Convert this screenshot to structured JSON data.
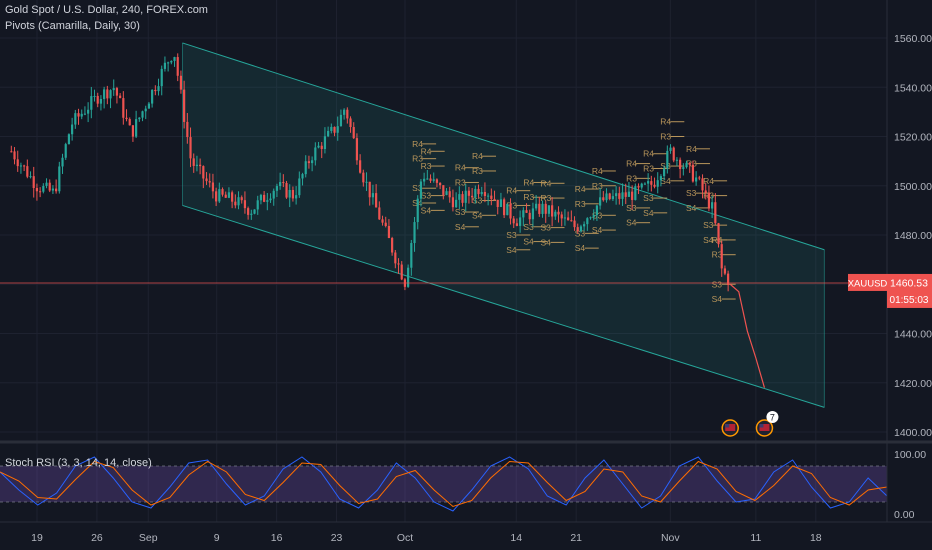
{
  "header": {
    "symbol_line": "Gold Spot / U.S. Dollar, 240, FOREX.com",
    "indicator_line": "Pivots (Camarilla, Daily, 30)",
    "oscillator_line": "Stoch RSI (3, 3, 14, 14, close)"
  },
  "price_badge": {
    "symbol": "XAUUSD",
    "price": "1460.53",
    "countdown": "01:55:03",
    "color": "#ef5350"
  },
  "event_badge": {
    "count": "7"
  },
  "colors": {
    "channel": "#26a69a",
    "up": "#26a69a",
    "down": "#ef5350",
    "stoch_k": "#2962ff",
    "stoch_d": "#ff6d00",
    "pivot": "#b8955a",
    "rsi_band": "#7e57c2"
  },
  "chart_data": [
    {
      "type": "candlestick",
      "y_axis": {
        "ticks": [
          "1560.00",
          "1540.00",
          "1520.00",
          "1500.00",
          "1480.00",
          "1460.00",
          "1440.00",
          "1420.00",
          "1400.00"
        ],
        "ylim": [
          1397,
          1566
        ]
      },
      "x_axis": {
        "ticks": [
          "19",
          "26",
          "Sep",
          "9",
          "16",
          "23",
          "Oct",
          "14",
          "21",
          "Nov",
          "11",
          "18"
        ]
      },
      "approx_daily_closes": [
        {
          "x": "Aug 16",
          "close": 1514
        },
        {
          "x": "Aug 19",
          "close": 1500
        },
        {
          "x": "Aug 21",
          "close": 1497
        },
        {
          "x": "Aug 23",
          "close": 1525
        },
        {
          "x": "Aug 26",
          "close": 1536
        },
        {
          "x": "Aug 28",
          "close": 1540
        },
        {
          "x": "Aug 30",
          "close": 1521
        },
        {
          "x": "Sep 3",
          "close": 1549
        },
        {
          "x": "Sep 4",
          "close": 1555
        },
        {
          "x": "Sep 6",
          "close": 1510
        },
        {
          "x": "Sep 9",
          "close": 1496
        },
        {
          "x": "Sep 11",
          "close": 1494
        },
        {
          "x": "Sep 13",
          "close": 1490
        },
        {
          "x": "Sep 16",
          "close": 1500
        },
        {
          "x": "Sep 18",
          "close": 1496
        },
        {
          "x": "Sep 20",
          "close": 1512
        },
        {
          "x": "Sep 23",
          "close": 1524
        },
        {
          "x": "Sep 24",
          "close": 1532
        },
        {
          "x": "Sep 26",
          "close": 1505
        },
        {
          "x": "Sep 30",
          "close": 1470
        },
        {
          "x": "Oct 1",
          "close": 1461
        },
        {
          "x": "Oct 3",
          "close": 1505
        },
        {
          "x": "Oct 7",
          "close": 1493
        },
        {
          "x": "Oct 10",
          "close": 1500
        },
        {
          "x": "Oct 14",
          "close": 1486
        },
        {
          "x": "Oct 17",
          "close": 1491
        },
        {
          "x": "Oct 21",
          "close": 1483
        },
        {
          "x": "Oct 24",
          "close": 1494
        },
        {
          "x": "Oct 28",
          "close": 1497
        },
        {
          "x": "Oct 30",
          "close": 1501
        },
        {
          "x": "Nov 1",
          "close": 1514
        },
        {
          "x": "Nov 4",
          "close": 1503
        },
        {
          "x": "Nov 6",
          "close": 1490
        },
        {
          "x": "Nov 7",
          "close": 1466
        },
        {
          "x": "Nov 8",
          "close": 1460.53
        }
      ],
      "channel": {
        "upper": [
          [
            "Sep 5",
            1558
          ],
          [
            "Nov 19",
            1474
          ]
        ],
        "lower": [
          [
            "Sep 5",
            1492
          ],
          [
            "Nov 19",
            1410
          ]
        ]
      },
      "projection": [
        [
          "Nov 8",
          1460
        ],
        [
          "Nov 9",
          1457
        ],
        [
          "Nov 10",
          1441
        ],
        [
          "Nov 11",
          1430
        ],
        [
          "Nov 12",
          1418
        ]
      ],
      "pivot_labels": [
        "R4",
        "R3",
        "S3",
        "S4"
      ],
      "current_price": 1460.53
    },
    {
      "type": "line",
      "title": "Stoch RSI (3, 3, 14, 14, close)",
      "y_axis": {
        "ticks": [
          "100.00",
          "0.00"
        ],
        "ylim": [
          0,
          100
        ],
        "bands": [
          20,
          80
        ]
      },
      "series": [
        {
          "values": [
            70,
            40,
            15,
            35,
            80,
            95,
            60,
            20,
            10,
            45,
            85,
            90,
            50,
            15,
            30,
            75,
            95,
            70,
            25,
            10,
            40,
            85,
            60,
            20,
            5,
            40,
            80,
            95,
            75,
            30,
            15,
            60,
            90,
            50,
            10,
            30,
            80,
            95,
            55,
            20,
            25,
            70,
            90,
            45,
            10,
            20,
            60,
            30
          ]
        }
      ]
    }
  ]
}
